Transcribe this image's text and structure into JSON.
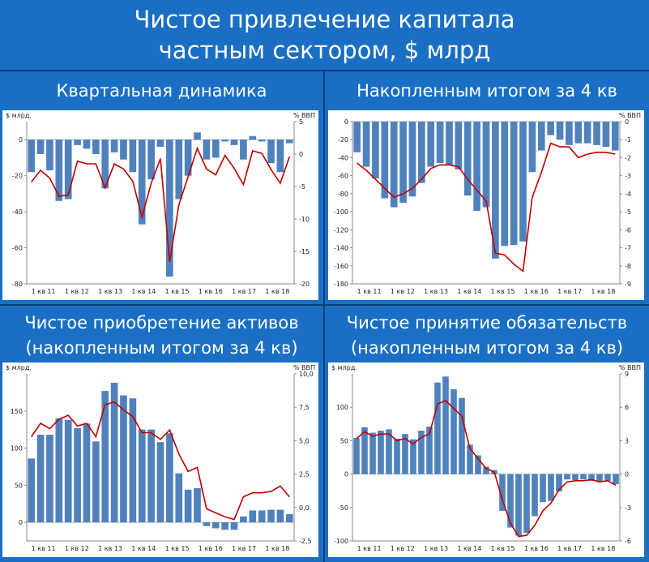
{
  "title_line1": "Чистое привлечение капитала",
  "title_line2": "частным сектором, $ млрд",
  "panels": [
    {
      "title_line1": "Квартальная динамика",
      "title_line2": ""
    },
    {
      "title_line1": "Накопленным итогом за 4 кв",
      "title_line2": ""
    },
    {
      "title_line1": "Чистое приобретение активов",
      "title_line2": "(накопленным итогом за 4 кв)"
    },
    {
      "title_line1": "Чистое принятие обязательств",
      "title_line2": "(накопленным итогом за 4 кв)"
    }
  ],
  "colors": {
    "bar": "#4f81bd",
    "line": "#c00000",
    "background": "#1a6fc4",
    "divider": "#0d3f77"
  },
  "chart_data": [
    {
      "type": "bar",
      "ylabel": "$ млрд.",
      "y2label": "% ВВП",
      "ylim": [
        -80,
        10
      ],
      "yticks": [
        -80,
        -60,
        -40,
        -20,
        0
      ],
      "y2lim": [
        -20,
        5
      ],
      "y2ticks": [
        -20,
        -15,
        -10,
        -5,
        0,
        5
      ],
      "x_tick_labels": [
        "1 кв 11",
        "1 кв 12",
        "1 кв 13",
        "1 кв 14",
        "1 кв 15",
        "1 кв 16",
        "1 кв 17",
        "1 кв 18"
      ],
      "series": [
        {
          "name": "bars",
          "axis": "left",
          "values": [
            -18,
            -8,
            -17,
            -34,
            -33,
            -3,
            -5,
            -8,
            -27,
            -7,
            -11,
            -18,
            -47,
            -22,
            -4,
            -76,
            -33,
            -20,
            4,
            -11,
            -10,
            -1,
            -3,
            -11,
            2,
            -1,
            -13,
            -18,
            -2
          ]
        },
        {
          "name": "line",
          "axis": "right",
          "values": [
            -4.3,
            -2.5,
            -3.7,
            -6.5,
            -6.3,
            -1.1,
            -1.5,
            -1.5,
            -5.2,
            -1.5,
            -2.3,
            -4.2,
            -9.7,
            -4.5,
            -0.7,
            -16.6,
            -7.8,
            -3.5,
            0.9,
            -2.3,
            -3.2,
            -0.2,
            -2.2,
            -4.7,
            0.5,
            0.1,
            -2.4,
            -4.5,
            -0.4
          ]
        }
      ]
    },
    {
      "type": "bar",
      "ylabel": "",
      "y2label": "% ВВП",
      "ylim": [
        -180,
        0
      ],
      "yticks": [
        -180,
        -160,
        -140,
        -120,
        -100,
        -80,
        -60,
        -40,
        -20,
        0
      ],
      "y2lim": [
        -9,
        0
      ],
      "y2ticks": [
        -9,
        -8,
        -7,
        -6,
        -5,
        -4,
        -3,
        -2,
        -1,
        0
      ],
      "x_tick_labels": [
        "1 кв 11",
        "1 кв 12",
        "1 кв 13",
        "1 кв 14",
        "1 кв 15",
        "1 кв 16",
        "1 кв 17",
        "1 кв 18"
      ],
      "series": [
        {
          "name": "bars",
          "axis": "left",
          "values": [
            -34,
            -50,
            -63,
            -85,
            -95,
            -90,
            -83,
            -68,
            -50,
            -46,
            -48,
            -53,
            -82,
            -99,
            -95,
            -152,
            -138,
            -137,
            -133,
            -56,
            -32,
            -15,
            -20,
            -26,
            -24,
            -24,
            -26,
            -28,
            -32
          ]
        },
        {
          "name": "line",
          "axis": "right",
          "values": [
            -2.3,
            -2.7,
            -3.2,
            -3.7,
            -4.2,
            -4.0,
            -3.7,
            -3.2,
            -2.6,
            -2.4,
            -2.4,
            -2.5,
            -3.2,
            -3.8,
            -4.4,
            -7.3,
            -7.4,
            -7.9,
            -8.3,
            -4.2,
            -2.8,
            -1.2,
            -1.4,
            -1.4,
            -2.0,
            -1.8,
            -1.7,
            -1.7,
            -1.8
          ]
        }
      ]
    },
    {
      "type": "bar",
      "ylabel": "$ млрд.",
      "y2label": "% ВВП",
      "ylim": [
        -25,
        200
      ],
      "yticks": [
        0,
        50,
        100,
        150
      ],
      "y2lim": [
        -2.5,
        10
      ],
      "y2ticks": [
        -2.5,
        0,
        2.5,
        5,
        7.5,
        10
      ],
      "y2ticklabels": [
        "-2,5",
        "0,0",
        "2,5",
        "5,0",
        "7,5",
        "10,0"
      ],
      "x_tick_labels": [
        "1 кв 11",
        "1 кв 12",
        "1 кв 13",
        "1 кв 14",
        "1 кв 15",
        "1 кв 16",
        "1 кв 17",
        "1 кв 18"
      ],
      "series": [
        {
          "name": "bars",
          "axis": "left",
          "values": [
            86,
            118,
            118,
            140,
            138,
            127,
            133,
            109,
            177,
            188,
            171,
            167,
            125,
            125,
            108,
            120,
            66,
            44,
            46,
            -5,
            -8,
            -10,
            -10,
            8,
            16,
            16,
            17,
            17,
            11
          ]
        },
        {
          "name": "line",
          "axis": "right",
          "values": [
            5.3,
            6.3,
            5.9,
            6.6,
            6.9,
            6.1,
            6.3,
            5.3,
            7.7,
            7.9,
            7.3,
            6.8,
            5.6,
            5.6,
            5.1,
            5.8,
            4.0,
            2.7,
            3.0,
            -0.1,
            -0.4,
            -0.7,
            -0.9,
            0.8,
            1.1,
            1.1,
            1.2,
            1.6,
            0.8
          ]
        }
      ]
    },
    {
      "type": "bar",
      "ylabel": "$ млрд.",
      "y2label": "% ВВП",
      "ylim": [
        -100,
        150
      ],
      "yticks": [
        -100,
        -50,
        0,
        50,
        100
      ],
      "y2lim": [
        -6,
        9
      ],
      "y2ticks": [
        -6,
        -3,
        0,
        3,
        6,
        9
      ],
      "x_tick_labels": [
        "1 кв 11",
        "1 кв 12",
        "1 кв 13",
        "1 кв 14",
        "1 кв 15",
        "1 кв 16",
        "1 кв 17",
        "1 кв 18"
      ],
      "series": [
        {
          "name": "bars",
          "axis": "left",
          "values": [
            54,
            70,
            62,
            65,
            67,
            53,
            60,
            52,
            65,
            71,
            137,
            146,
            127,
            114,
            44,
            28,
            11,
            6,
            -55,
            -80,
            -92,
            -88,
            -63,
            -42,
            -40,
            -26,
            -8,
            -9,
            -8,
            -10,
            -12,
            -10,
            -15
          ]
        },
        {
          "name": "line",
          "axis": "right",
          "values": [
            3.2,
            3.8,
            3.4,
            3.6,
            3.6,
            3.0,
            3.2,
            2.7,
            3.3,
            3.6,
            6.3,
            6.6,
            5.9,
            5.2,
            2.3,
            1.4,
            0.5,
            0.2,
            -2.3,
            -4.4,
            -5.6,
            -5.5,
            -4.6,
            -3.3,
            -2.6,
            -1.4,
            -0.7,
            -0.6,
            -0.6,
            -0.5,
            -0.7,
            -0.6,
            -1.0
          ]
        }
      ]
    }
  ]
}
